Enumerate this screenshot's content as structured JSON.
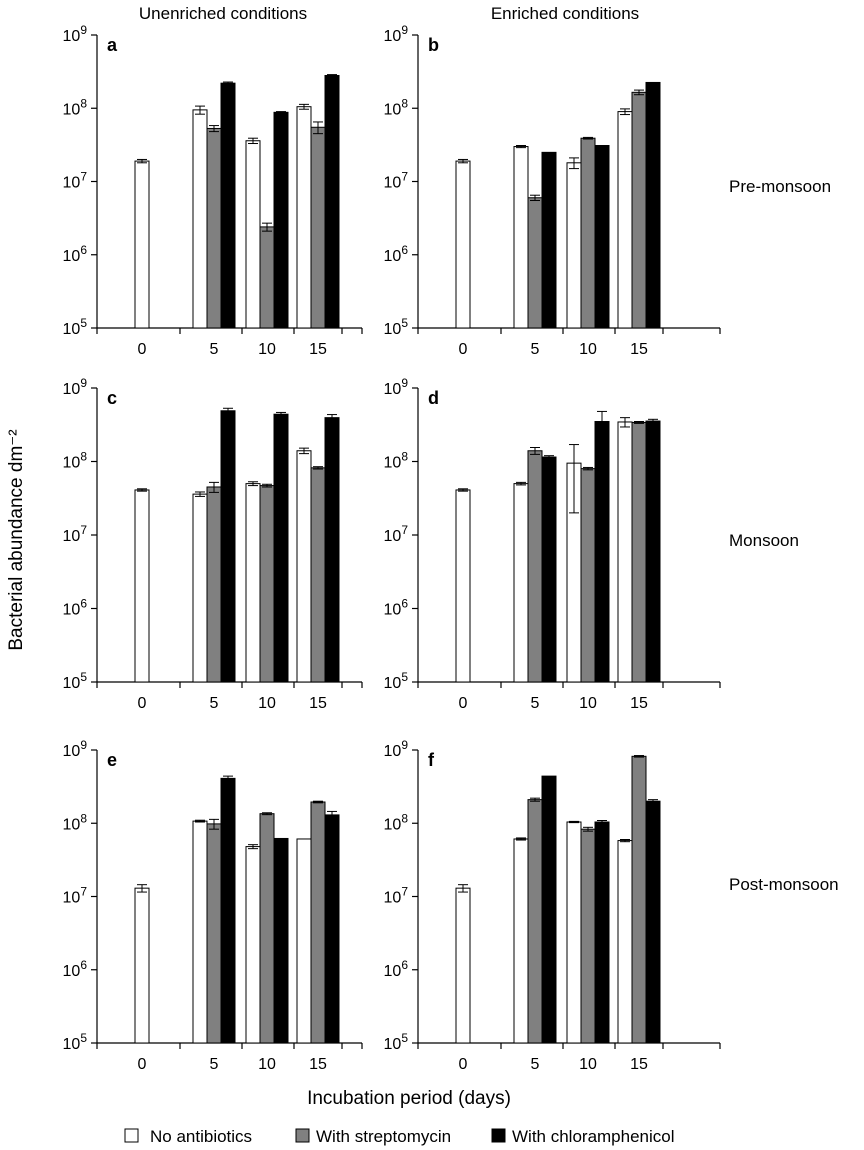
{
  "column_titles": [
    "Unenriched conditions",
    "Enriched conditions"
  ],
  "row_labels": [
    "Pre-monsoon",
    "Monsoon",
    "Post-monsoon"
  ],
  "y_axis_label": "Bacterial abundance dm⁻²",
  "x_axis_label": "Incubation period (days)",
  "legend": [
    {
      "label": "No antibiotics",
      "color": "#ffffff"
    },
    {
      "label": "With streptomycin",
      "color": "#808080"
    },
    {
      "label": "With chloramphenicol",
      "color": "#000000"
    }
  ],
  "y_ticks": [
    {
      "base": "10",
      "exp": "5"
    },
    {
      "base": "10",
      "exp": "6"
    },
    {
      "base": "10",
      "exp": "7"
    },
    {
      "base": "10",
      "exp": "8"
    },
    {
      "base": "10",
      "exp": "9"
    }
  ],
  "chart_data": [
    {
      "panel": "a",
      "type": "bar",
      "yscale": "log",
      "ylim": [
        100000,
        1000000000
      ],
      "categories": [
        "0",
        "5",
        "10",
        "15"
      ],
      "series": [
        {
          "name": "No antibiotics",
          "values": [
            19000000,
            95000000,
            36000000,
            105000000
          ],
          "errors": [
            1000000,
            12000000,
            3000000,
            8000000
          ]
        },
        {
          "name": "With streptomycin",
          "values": [
            null,
            53000000,
            2400000,
            55000000
          ],
          "errors": [
            null,
            5000000,
            300000,
            10000000
          ]
        },
        {
          "name": "With chloramphenicol",
          "values": [
            null,
            220000000,
            88000000,
            280000000
          ],
          "errors": [
            null,
            8000000,
            2000000,
            8000000
          ]
        }
      ]
    },
    {
      "panel": "b",
      "type": "bar",
      "yscale": "log",
      "ylim": [
        100000,
        1000000000
      ],
      "categories": [
        "0",
        "5",
        "10",
        "15"
      ],
      "series": [
        {
          "name": "No antibiotics",
          "values": [
            19000000,
            30000000,
            18000000,
            90000000
          ],
          "errors": [
            1000000,
            1000000,
            3000000,
            8000000
          ]
        },
        {
          "name": "With streptomycin",
          "values": [
            null,
            6000000,
            39000000,
            165000000
          ],
          "errors": [
            null,
            500000,
            1000000,
            12000000
          ]
        },
        {
          "name": "With chloramphenicol",
          "values": [
            null,
            25000000,
            31000000,
            225000000
          ],
          "errors": [
            null,
            null,
            null,
            null
          ]
        }
      ]
    },
    {
      "panel": "c",
      "type": "bar",
      "yscale": "log",
      "ylim": [
        100000,
        1000000000
      ],
      "categories": [
        "0",
        "5",
        "10",
        "15"
      ],
      "series": [
        {
          "name": "No antibiotics",
          "values": [
            41000000,
            36000000,
            50000000,
            140000000
          ],
          "errors": [
            1500000,
            2500000,
            3000000,
            12000000
          ]
        },
        {
          "name": "With streptomycin",
          "values": [
            null,
            45000000,
            47000000,
            82000000
          ],
          "errors": [
            null,
            7000000,
            2000000,
            3000000
          ]
        },
        {
          "name": "With chloramphenicol",
          "values": [
            null,
            490000000,
            440000000,
            395000000
          ],
          "errors": [
            null,
            40000000,
            25000000,
            40000000
          ]
        }
      ]
    },
    {
      "panel": "d",
      "type": "bar",
      "yscale": "log",
      "ylim": [
        100000,
        1000000000
      ],
      "categories": [
        "0",
        "5",
        "10",
        "15"
      ],
      "series": [
        {
          "name": "No antibiotics",
          "values": [
            41000000,
            50000000,
            95000000,
            345000000
          ],
          "errors": [
            1500000,
            2000000,
            75000000,
            50000000
          ]
        },
        {
          "name": "With streptomycin",
          "values": [
            null,
            140000000,
            80000000,
            340000000
          ],
          "errors": [
            null,
            15000000,
            3000000,
            10000000
          ]
        },
        {
          "name": "With chloramphenicol",
          "values": [
            null,
            115000000,
            350000000,
            355000000
          ],
          "errors": [
            null,
            5000000,
            130000000,
            20000000
          ]
        }
      ]
    },
    {
      "panel": "e",
      "type": "bar",
      "yscale": "log",
      "ylim": [
        100000,
        1000000000
      ],
      "categories": [
        "0",
        "5",
        "10",
        "15"
      ],
      "series": [
        {
          "name": "No antibiotics",
          "values": [
            13000000,
            107000000,
            48000000,
            61000000
          ],
          "errors": [
            1500000,
            3000000,
            3000000,
            null
          ]
        },
        {
          "name": "With streptomycin",
          "values": [
            null,
            98000000,
            135000000,
            195000000
          ],
          "errors": [
            null,
            15000000,
            4000000,
            5000000
          ]
        },
        {
          "name": "With chloramphenicol",
          "values": [
            null,
            410000000,
            62000000,
            130000000
          ],
          "errors": [
            null,
            30000000,
            null,
            15000000
          ]
        }
      ]
    },
    {
      "panel": "f",
      "type": "bar",
      "yscale": "log",
      "ylim": [
        100000,
        1000000000
      ],
      "categories": [
        "0",
        "5",
        "10",
        "15"
      ],
      "series": [
        {
          "name": "No antibiotics",
          "values": [
            13000000,
            61000000,
            104000000,
            58000000
          ],
          "errors": [
            1500000,
            2000000,
            2000000,
            2000000
          ]
        },
        {
          "name": "With streptomycin",
          "values": [
            null,
            210000000,
            83000000,
            820000000
          ],
          "errors": [
            null,
            10000000,
            5000000,
            20000000
          ]
        },
        {
          "name": "With chloramphenicol",
          "values": [
            null,
            440000000,
            104000000,
            200000000
          ],
          "errors": [
            null,
            null,
            5000000,
            10000000
          ]
        }
      ]
    }
  ]
}
